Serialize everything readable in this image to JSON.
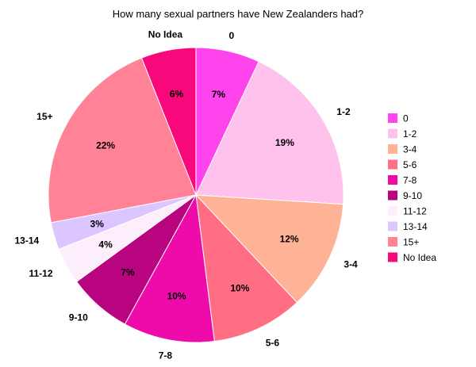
{
  "chart_data": {
    "type": "pie",
    "title": "How many sexual partners have New Zealanders had?",
    "legend_position": "right",
    "slices": [
      {
        "label": "0",
        "value": 7,
        "pct_label": "7%",
        "color": "#ff44ee"
      },
      {
        "label": "1-2",
        "value": 19,
        "pct_label": "19%",
        "color": "#ffc2ec"
      },
      {
        "label": "3-4",
        "value": 12,
        "pct_label": "12%",
        "color": "#ffb396"
      },
      {
        "label": "5-6",
        "value": 10,
        "pct_label": "10%",
        "color": "#ff6e82"
      },
      {
        "label": "7-8",
        "value": 10,
        "pct_label": "10%",
        "color": "#ee0baa"
      },
      {
        "label": "9-10",
        "value": 7,
        "pct_label": "7%",
        "color": "#b8047f"
      },
      {
        "label": "11-12",
        "value": 4,
        "pct_label": "4%",
        "color": "#fdeefb"
      },
      {
        "label": "13-14",
        "value": 3,
        "pct_label": "3%",
        "color": "#dcc6ff"
      },
      {
        "label": "15+",
        "value": 22,
        "pct_label": "22%",
        "color": "#ff8296"
      },
      {
        "label": "No Idea",
        "value": 6,
        "pct_label": "6%",
        "color": "#f8087a"
      }
    ]
  }
}
